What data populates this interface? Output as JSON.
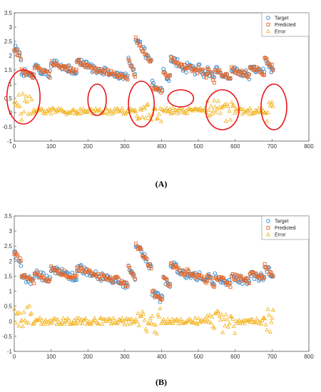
{
  "colors": {
    "target": "#2a83c9",
    "predicted": "#e8692a",
    "error": "#f2b21b",
    "annotation": "#e8151b",
    "axis": "#555555"
  },
  "chart_data": [
    {
      "type": "scatter",
      "panel_label": "(A)",
      "xlim": [
        0,
        800
      ],
      "ylim": [
        -1,
        3.5
      ],
      "xticks": [
        "0",
        "100",
        "200",
        "300",
        "400",
        "500",
        "600",
        "700",
        "800"
      ],
      "yticks": [
        "-1",
        "-0.5",
        "0",
        "0.5",
        "1",
        "1.5",
        "2",
        "2.5",
        "3",
        "3.5"
      ],
      "grid": false,
      "legend_position": "top-right",
      "series": [
        {
          "name": "Target",
          "marker": "circle"
        },
        {
          "name": "Predicted",
          "marker": "square"
        },
        {
          "name": "Error",
          "marker": "triangle"
        }
      ],
      "segments": [
        [
          0,
          20,
          2.3,
          1.85
        ],
        [
          20,
          55,
          1.45,
          1.25
        ],
        [
          55,
          100,
          1.6,
          1.3
        ],
        [
          100,
          170,
          1.75,
          1.45
        ],
        [
          170,
          230,
          1.8,
          1.45
        ],
        [
          230,
          275,
          1.5,
          1.35
        ],
        [
          275,
          310,
          1.35,
          1.2
        ],
        [
          310,
          330,
          1.8,
          1.3
        ],
        [
          330,
          375,
          2.6,
          1.7
        ],
        [
          375,
          390,
          1.0,
          0.75
        ],
        [
          390,
          405,
          0.8,
          0.7
        ],
        [
          405,
          425,
          1.4,
          1.2
        ],
        [
          425,
          470,
          1.9,
          1.5
        ],
        [
          470,
          500,
          1.65,
          1.4
        ],
        [
          500,
          525,
          1.6,
          1.25
        ],
        [
          525,
          545,
          1.55,
          1.1
        ],
        [
          545,
          590,
          1.5,
          1.2
        ],
        [
          590,
          640,
          1.5,
          1.3
        ],
        [
          640,
          680,
          1.6,
          1.4
        ],
        [
          680,
          700,
          1.9,
          1.5
        ],
        [
          700,
          705,
          1.6,
          1.45
        ]
      ],
      "annotations": [
        {
          "shape": "ellipse",
          "cx": 25,
          "cy": 0.55,
          "rx": 45,
          "ry": 0.95
        },
        {
          "shape": "ellipse",
          "cx": 225,
          "cy": 0.45,
          "rx": 25,
          "ry": 0.55
        },
        {
          "shape": "ellipse",
          "cx": 345,
          "cy": 0.3,
          "rx": 35,
          "ry": 0.8
        },
        {
          "shape": "ellipse",
          "cx": 452,
          "cy": 0.5,
          "rx": 35,
          "ry": 0.3
        },
        {
          "shape": "ellipse",
          "cx": 565,
          "cy": 0.1,
          "rx": 45,
          "ry": 0.7
        },
        {
          "shape": "ellipse",
          "cx": 705,
          "cy": 0.2,
          "rx": 35,
          "ry": 0.8
        }
      ]
    },
    {
      "type": "scatter",
      "panel_label": "(B)",
      "xlim": [
        0,
        800
      ],
      "ylim": [
        -1,
        3.5
      ],
      "xticks": [
        "0",
        "100",
        "200",
        "300",
        "400",
        "500",
        "600",
        "700",
        "800"
      ],
      "yticks": [
        "-1",
        "-0.5",
        "0",
        "0.5",
        "1",
        "1.5",
        "2",
        "2.5",
        "3",
        "3.5"
      ],
      "grid": false,
      "legend_position": "top-right",
      "series": [
        {
          "name": "Target",
          "marker": "circle"
        },
        {
          "name": "Predicted",
          "marker": "square"
        },
        {
          "name": "Error",
          "marker": "triangle"
        }
      ],
      "segments": [
        [
          0,
          20,
          2.3,
          1.9
        ],
        [
          20,
          55,
          1.5,
          1.3
        ],
        [
          55,
          100,
          1.6,
          1.35
        ],
        [
          100,
          170,
          1.75,
          1.45
        ],
        [
          170,
          230,
          1.8,
          1.5
        ],
        [
          230,
          275,
          1.5,
          1.35
        ],
        [
          275,
          310,
          1.4,
          1.2
        ],
        [
          310,
          330,
          1.8,
          1.3
        ],
        [
          330,
          375,
          2.6,
          1.7
        ],
        [
          375,
          390,
          1.0,
          0.75
        ],
        [
          390,
          405,
          0.8,
          0.7
        ],
        [
          405,
          425,
          1.4,
          1.2
        ],
        [
          425,
          470,
          1.9,
          1.5
        ],
        [
          470,
          500,
          1.65,
          1.4
        ],
        [
          500,
          525,
          1.6,
          1.25
        ],
        [
          525,
          545,
          1.55,
          1.1
        ],
        [
          545,
          590,
          1.5,
          1.2
        ],
        [
          590,
          640,
          1.5,
          1.3
        ],
        [
          640,
          680,
          1.6,
          1.4
        ],
        [
          680,
          700,
          1.9,
          1.5
        ],
        [
          700,
          705,
          1.6,
          1.45
        ]
      ],
      "annotations": []
    }
  ]
}
